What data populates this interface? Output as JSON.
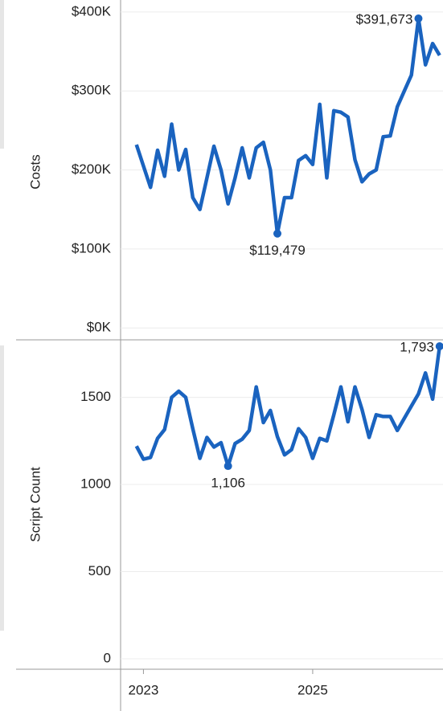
{
  "chart_data": [
    {
      "type": "line",
      "ylabel": "Costs",
      "x": [
        2022.917,
        2023.0,
        2023.083,
        2023.167,
        2023.25,
        2023.333,
        2023.417,
        2023.5,
        2023.583,
        2023.667,
        2023.75,
        2023.833,
        2023.917,
        2024.0,
        2024.083,
        2024.167,
        2024.25,
        2024.333,
        2024.417,
        2024.5,
        2024.583,
        2024.667,
        2024.75,
        2024.833,
        2024.917,
        2025.0,
        2025.083,
        2025.167,
        2025.25,
        2025.333,
        2025.417,
        2025.5,
        2025.583,
        2025.667,
        2025.75,
        2025.833,
        2025.917,
        2026.0,
        2026.083,
        2026.167,
        2026.25,
        2026.333,
        2026.417,
        2026.5
      ],
      "series": [
        {
          "name": "Costs",
          "color": "#1a63bf",
          "values": [
            232000,
            205000,
            178000,
            225000,
            192000,
            258000,
            200000,
            226000,
            165000,
            150000,
            190000,
            230000,
            200000,
            157000,
            190000,
            228000,
            190000,
            228000,
            235000,
            200000,
            119479,
            165000,
            165000,
            212000,
            218000,
            207000,
            283000,
            190000,
            275000,
            273000,
            267000,
            213000,
            185000,
            195000,
            200000,
            242000,
            243000,
            280000,
            300000,
            320000,
            391673,
            333000,
            360000,
            345000
          ],
          "value_labels": [
            null,
            null,
            null,
            null,
            null,
            null,
            null,
            null,
            null,
            null,
            null,
            null,
            null,
            null,
            null,
            null,
            null,
            null,
            null,
            null,
            "$119,479",
            null,
            null,
            null,
            null,
            null,
            null,
            null,
            null,
            null,
            null,
            null,
            null,
            null,
            null,
            null,
            null,
            null,
            null,
            null,
            "$391,673",
            null,
            null,
            null
          ]
        }
      ],
      "xlim": [
        2022.73,
        2026.54
      ],
      "ylim": [
        -15000,
        410000
      ],
      "yticks": [
        {
          "value": 0,
          "label": "$0K"
        },
        {
          "value": 100000,
          "label": "$100K"
        },
        {
          "value": 200000,
          "label": "$200K"
        },
        {
          "value": 300000,
          "label": "$300K"
        },
        {
          "value": 400000,
          "label": "$400K"
        }
      ],
      "grid": true
    },
    {
      "type": "line",
      "ylabel": "Script Count",
      "x": [
        2022.917,
        2023.0,
        2023.083,
        2023.167,
        2023.25,
        2023.333,
        2023.417,
        2023.5,
        2023.583,
        2023.667,
        2023.75,
        2023.833,
        2023.917,
        2024.0,
        2024.083,
        2024.167,
        2024.25,
        2024.333,
        2024.417,
        2024.5,
        2024.583,
        2024.667,
        2024.75,
        2024.833,
        2024.917,
        2025.0,
        2025.083,
        2025.167,
        2025.25,
        2025.333,
        2025.417,
        2025.5,
        2025.583,
        2025.667,
        2025.75,
        2025.833,
        2025.917,
        2026.0,
        2026.083,
        2026.167,
        2026.25,
        2026.333,
        2026.417,
        2026.5
      ],
      "series": [
        {
          "name": "Script Count",
          "color": "#1a63bf",
          "values": [
            1220,
            1145,
            1155,
            1265,
            1315,
            1500,
            1535,
            1500,
            1320,
            1150,
            1270,
            1215,
            1240,
            1106,
            1235,
            1260,
            1310,
            1560,
            1355,
            1425,
            1275,
            1170,
            1200,
            1320,
            1270,
            1150,
            1265,
            1250,
            1400,
            1560,
            1360,
            1560,
            1430,
            1270,
            1400,
            1390,
            1390,
            1310,
            1380,
            1450,
            1520,
            1640,
            1490,
            1793
          ],
          "value_labels": [
            null,
            null,
            null,
            null,
            null,
            null,
            null,
            null,
            null,
            null,
            null,
            null,
            null,
            "1,106",
            null,
            null,
            null,
            null,
            null,
            null,
            null,
            null,
            null,
            null,
            null,
            null,
            null,
            null,
            null,
            null,
            null,
            null,
            null,
            null,
            null,
            null,
            null,
            null,
            null,
            null,
            null,
            null,
            null,
            "1,793"
          ]
        }
      ],
      "xlim": [
        2022.73,
        2026.54
      ],
      "ylim": [
        -60,
        1830
      ],
      "yticks": [
        0,
        500,
        1000,
        1500
      ],
      "xticks": [
        2023,
        2025
      ],
      "grid": true
    }
  ]
}
